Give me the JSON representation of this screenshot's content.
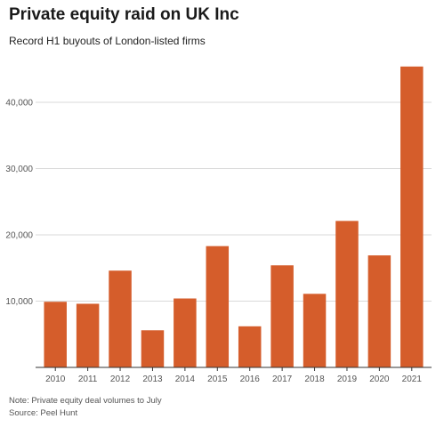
{
  "chart_data": {
    "type": "bar",
    "title": "Private equity raid on UK Inc",
    "subtitle": "Record H1 buyouts of London-listed firms",
    "categories": [
      "2010",
      "2011",
      "2012",
      "2013",
      "2014",
      "2015",
      "2016",
      "2017",
      "2018",
      "2019",
      "2020",
      "2021"
    ],
    "values": [
      9900,
      9600,
      14600,
      5600,
      10400,
      18300,
      6200,
      15400,
      11100,
      22100,
      16900,
      45400
    ],
    "xlabel": "",
    "ylabel": "",
    "ylim": [
      0,
      45000
    ],
    "yticks": [
      10000,
      20000,
      30000,
      40000
    ],
    "ytick_labels": [
      "10,000",
      "20,000",
      "30,000",
      "40,000"
    ],
    "grid": true,
    "bar_color": "#d55d2b",
    "note": "Note: Private equity deal volumes to July",
    "source": "Source: Peel Hunt"
  }
}
